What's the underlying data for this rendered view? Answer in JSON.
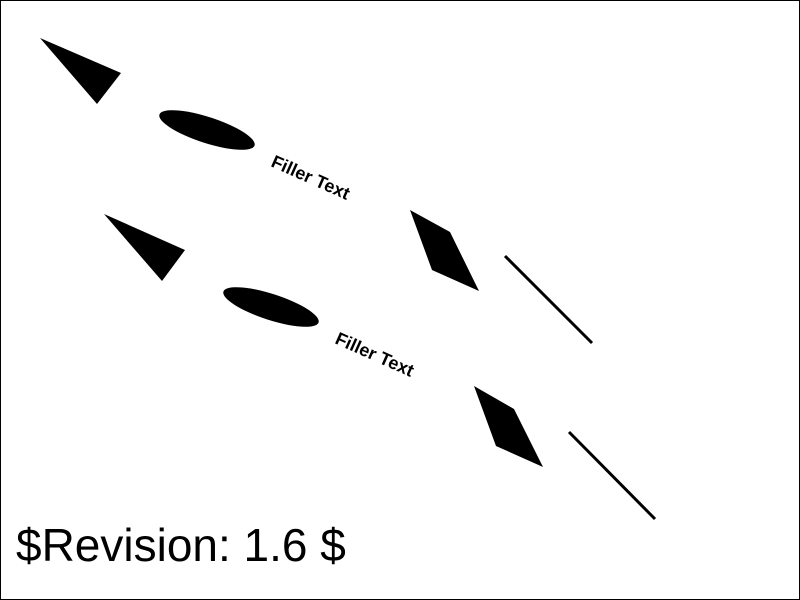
{
  "shape_groups": [
    {
      "name": "upper-group",
      "text": "Filler Text"
    },
    {
      "name": "lower-group",
      "text": "Filler Text"
    }
  ],
  "revision_text": "$Revision: 1.6 $",
  "colors": {
    "ink": "#000000",
    "background": "#ffffff"
  }
}
